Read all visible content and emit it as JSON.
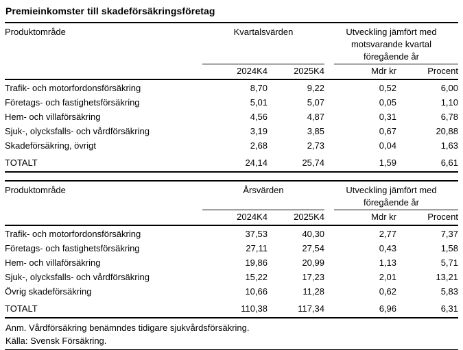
{
  "title": "Premieinkomster till skadeförsäkringsföretag",
  "tables": [
    {
      "product_col_header": "Produktområde",
      "value_group_header": "Kvartalsvärden",
      "dev_group_lines": [
        "Utveckling jämfört med",
        "motsvarande kvartal",
        "föregående år"
      ],
      "subheaders": [
        "2024K4",
        "2025K4",
        "Mdr kr",
        "Procent"
      ],
      "rows": [
        {
          "label": "Trafik- och motorfordonsförsäkring",
          "values": [
            "8,70",
            "9,22",
            "0,52",
            "6,00"
          ]
        },
        {
          "label": "Företags- och fastighetsförsäkring",
          "values": [
            "5,01",
            "5,07",
            "0,05",
            "1,10"
          ]
        },
        {
          "label": "Hem- och villaförsäkring",
          "values": [
            "4,56",
            "4,87",
            "0,31",
            "6,78"
          ]
        },
        {
          "label": "Sjuk-, olycksfalls- och vårdförsäkring",
          "values": [
            "3,19",
            "3,85",
            "0,67",
            "20,88"
          ]
        },
        {
          "label": "Skadeförsäkring, övrigt",
          "values": [
            "2,68",
            "2,73",
            "0,04",
            "1,63"
          ]
        }
      ],
      "total": {
        "label": "TOTALT",
        "values": [
          "24,14",
          "25,74",
          "1,59",
          "6,61"
        ]
      }
    },
    {
      "product_col_header": "Produktområde",
      "value_group_header": "Årsvärden",
      "dev_group_lines": [
        "Utveckling jämfört med",
        "föregående år"
      ],
      "subheaders": [
        "2024K4",
        "2025K4",
        "Mdr kr",
        "Procent"
      ],
      "rows": [
        {
          "label": "Trafik- och motorfordonsförsäkring",
          "values": [
            "37,53",
            "40,30",
            "2,77",
            "7,37"
          ]
        },
        {
          "label": "Företags- och fastighetsförsäkring",
          "values": [
            "27,11",
            "27,54",
            "0,43",
            "1,58"
          ]
        },
        {
          "label": "Hem- och villaförsäkring",
          "values": [
            "19,86",
            "20,99",
            "1,13",
            "5,71"
          ]
        },
        {
          "label": "Sjuk-, olycksfalls- och vårdförsäkring",
          "values": [
            "15,22",
            "17,23",
            "2,01",
            "13,21"
          ]
        },
        {
          "label": "Övrig skadeförsäkring",
          "values": [
            "10,66",
            "11,28",
            "0,62",
            "5,83"
          ]
        }
      ],
      "total": {
        "label": "TOTALT",
        "values": [
          "110,38",
          "117,34",
          "6,96",
          "6,31"
        ]
      }
    }
  ],
  "footnotes": {
    "note": "Anm. Vårdförsäkring benämndes tidigare sjukvårdsförsäkring.",
    "source": "Källa: Svensk Försäkring."
  },
  "colors": {
    "text": "#000000",
    "rule": "#000000",
    "background": "#ffffff"
  }
}
